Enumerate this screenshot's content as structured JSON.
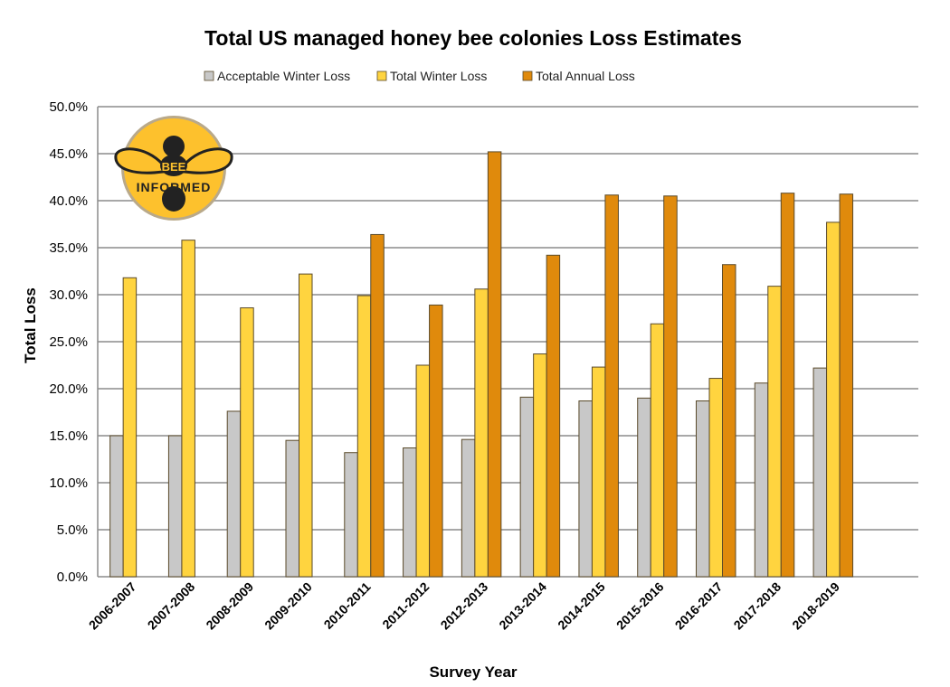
{
  "chart_data": {
    "type": "bar",
    "title": "Total US managed honey bee colonies Loss Estimates",
    "xlabel": "Survey Year",
    "ylabel": "Total Loss",
    "ylim": [
      0,
      50
    ],
    "yticks": [
      "0.0%",
      "5.0%",
      "10.0%",
      "15.0%",
      "20.0%",
      "25.0%",
      "30.0%",
      "35.0%",
      "40.0%",
      "45.0%",
      "50.0%"
    ],
    "grid": true,
    "legend_position": "top",
    "categories": [
      "2006-2007",
      "2007-2008",
      "2008-2009",
      "2009-2010",
      "2010-2011",
      "2011-2012",
      "2012-2013",
      "2013-2014",
      "2014-2015",
      "2015-2016",
      "2016-2017",
      "2017-2018",
      "2018-2019"
    ],
    "series": [
      {
        "name": "Acceptable Winter Loss",
        "color": "#c8c8c8",
        "values": [
          15.0,
          15.0,
          17.6,
          14.5,
          13.2,
          13.7,
          14.6,
          19.1,
          18.7,
          19.0,
          18.7,
          20.6,
          22.2
        ]
      },
      {
        "name": "Total Winter Loss",
        "color": "#ffd43f",
        "values": [
          31.8,
          35.8,
          28.6,
          32.2,
          29.9,
          22.5,
          30.6,
          23.7,
          22.3,
          26.9,
          21.1,
          30.9,
          37.7
        ]
      },
      {
        "name": "Total Annual Loss",
        "color": "#e08a0c",
        "values": [
          null,
          null,
          null,
          null,
          36.4,
          28.9,
          45.2,
          34.2,
          40.6,
          40.5,
          33.2,
          40.8,
          40.7
        ]
      }
    ]
  },
  "logo": {
    "line1": "BEE",
    "line2": "INFORMED"
  }
}
